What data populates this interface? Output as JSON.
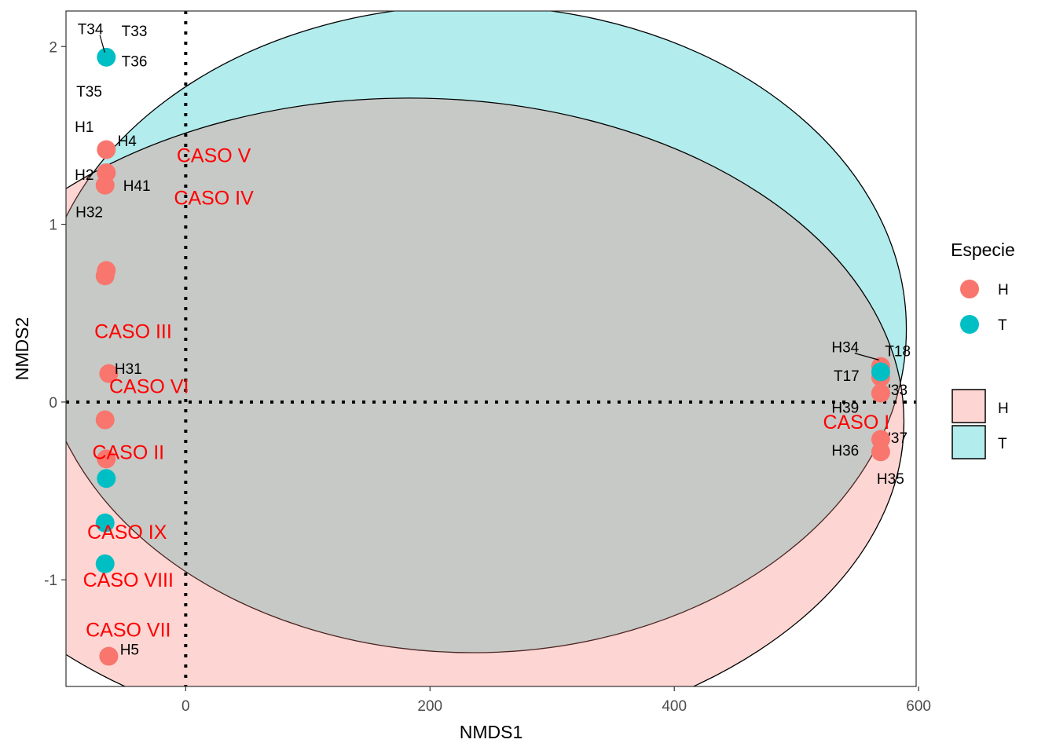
{
  "chart_data": {
    "type": "scatter",
    "xlabel": "NMDS1",
    "ylabel": "NMDS2",
    "xlim": [
      -98,
      598
    ],
    "ylim": [
      -1.6,
      2.2
    ],
    "x_ticks": [
      0,
      200,
      400,
      600
    ],
    "y_ticks": [
      -1,
      0,
      1,
      2
    ],
    "grid": false,
    "reference_lines": {
      "x": 0,
      "y": 0,
      "style": "dotted"
    },
    "colors": {
      "H": "#f8766d",
      "T": "#00bfc4"
    },
    "legend": {
      "title": "Especie",
      "position": "right",
      "point_entries": [
        "H",
        "T"
      ],
      "fill_entries": [
        "H",
        "T"
      ]
    },
    "series": [
      {
        "name": "H",
        "points": [
          {
            "x": -65,
            "y": 1.42
          },
          {
            "x": -65,
            "y": 1.29
          },
          {
            "x": -66,
            "y": 1.22
          },
          {
            "x": -65,
            "y": 0.74
          },
          {
            "x": -66,
            "y": 0.71
          },
          {
            "x": -63,
            "y": 0.16
          },
          {
            "x": -66,
            "y": -0.1
          },
          {
            "x": -65,
            "y": -0.32
          },
          {
            "x": -63,
            "y": -1.43
          },
          {
            "x": 569,
            "y": 0.2
          },
          {
            "x": 569,
            "y": 0.14
          },
          {
            "x": 569,
            "y": 0.05
          },
          {
            "x": 569,
            "y": -0.21
          },
          {
            "x": 569,
            "y": -0.28
          }
        ]
      },
      {
        "name": "T",
        "points": [
          {
            "x": -65,
            "y": 1.94
          },
          {
            "x": -65,
            "y": -0.43
          },
          {
            "x": -66,
            "y": -0.68
          },
          {
            "x": -66,
            "y": -0.91
          },
          {
            "x": 569,
            "y": 0.17
          }
        ]
      }
    ],
    "ellipses": [
      {
        "group": "T",
        "cx": 235,
        "cy": 0.41,
        "rx": 355,
        "ry": 1.82
      },
      {
        "group": "H",
        "cx": 183,
        "cy": -0.11,
        "rx": 405,
        "ry": 1.82
      }
    ],
    "point_labels": [
      {
        "text": "T34",
        "x": -78,
        "y": 2.1
      },
      {
        "text": "T33",
        "x": -42,
        "y": 2.09
      },
      {
        "text": "T36",
        "x": -42,
        "y": 1.92
      },
      {
        "text": "T35",
        "x": -79,
        "y": 1.75
      },
      {
        "text": "H1",
        "x": -83,
        "y": 1.55
      },
      {
        "text": "H4",
        "x": -48,
        "y": 1.47
      },
      {
        "text": "H2",
        "x": -83,
        "y": 1.28
      },
      {
        "text": "H41",
        "x": -40,
        "y": 1.22
      },
      {
        "text": "H32",
        "x": -79,
        "y": 1.07
      },
      {
        "text": "H31",
        "x": -47,
        "y": 0.19
      },
      {
        "text": "H34",
        "x": 540,
        "y": 0.31
      },
      {
        "text": "T18",
        "x": 583,
        "y": 0.29
      },
      {
        "text": "T17",
        "x": 541,
        "y": 0.15
      },
      {
        "text": "'33",
        "x": 583,
        "y": 0.07
      },
      {
        "text": "H39",
        "x": 540,
        "y": -0.03
      },
      {
        "text": "'37",
        "x": 583,
        "y": -0.2
      },
      {
        "text": "H36",
        "x": 540,
        "y": -0.27
      },
      {
        "text": "H35",
        "x": 577,
        "y": -0.43
      },
      {
        "text": "H5",
        "x": -46,
        "y": -1.39
      }
    ],
    "caso_labels": [
      {
        "text": "CASO V",
        "x": 23,
        "y": 1.39
      },
      {
        "text": "CASO IV",
        "x": 23,
        "y": 1.15
      },
      {
        "text": "CASO III",
        "x": -43,
        "y": 0.4
      },
      {
        "text": "CASO VI",
        "x": -30,
        "y": 0.09
      },
      {
        "text": "CASO II",
        "x": -47,
        "y": -0.28
      },
      {
        "text": "CASO IX",
        "x": -48,
        "y": -0.73
      },
      {
        "text": "CASO VIII",
        "x": -47,
        "y": -1.0
      },
      {
        "text": "CASO VII",
        "x": -47,
        "y": -1.28
      },
      {
        "text": "CASO I",
        "x": 549,
        "y": -0.11
      }
    ]
  }
}
